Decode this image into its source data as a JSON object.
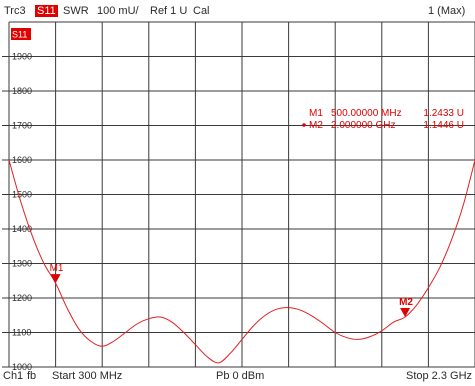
{
  "header": {
    "trace": "Trc3",
    "param": "S11",
    "format": "SWR",
    "scale": "100 mU/",
    "ref": "Ref 1 U",
    "cal": "Cal",
    "max_indicator": "1 (Max)"
  },
  "footer": {
    "channel": "Ch1",
    "fb": "fb",
    "start": "Start  300 MHz",
    "power": "Pb    0 dBm",
    "stop": "Stop  2.3 GHz"
  },
  "colors": {
    "trace": "#e02020",
    "grid": "#3a3a3a",
    "text": "#2a2a2a",
    "accent": "#e00000"
  },
  "chart_data": {
    "type": "line",
    "title": "",
    "xlabel": "",
    "ylabel": "",
    "xlim": [
      300,
      2300
    ],
    "ylim": [
      1000,
      2000
    ],
    "x_unit": "MHz",
    "y_unit": "mU",
    "trace_label": "S11",
    "y_ticks": [
      1000,
      1100,
      1200,
      1300,
      1400,
      1500,
      1600,
      1700,
      1800,
      1900
    ],
    "y_tick_labels": [
      "1000",
      "1100",
      "1200",
      "1300",
      "1400",
      "1500",
      "1600",
      "1700",
      "1800",
      "1900"
    ],
    "grid": true,
    "series": [
      {
        "x": [
          300,
          350,
          400,
          450,
          500,
          550,
          600,
          650,
          700,
          750,
          800,
          850,
          900,
          950,
          1000,
          1050,
          1100,
          1150,
          1200,
          1250,
          1300,
          1350,
          1400,
          1450,
          1500,
          1550,
          1600,
          1650,
          1700,
          1750,
          1800,
          1850,
          1900,
          1950,
          2000,
          2050,
          2100,
          2150,
          2200,
          2250,
          2300
        ],
        "values": [
          1600,
          1480,
          1380,
          1300,
          1243,
          1170,
          1110,
          1075,
          1060,
          1075,
          1100,
          1125,
          1140,
          1145,
          1130,
          1100,
          1065,
          1030,
          1012,
          1040,
          1080,
          1120,
          1150,
          1168,
          1172,
          1165,
          1148,
          1125,
          1100,
          1085,
          1080,
          1088,
          1105,
          1130,
          1145,
          1180,
          1230,
          1290,
          1370,
          1470,
          1600
        ]
      }
    ],
    "markers": [
      {
        "label": "M1",
        "x": 500,
        "y": 1243,
        "freq_text": "500.00000 MHz",
        "value_text": "1.2433 U",
        "active": false
      },
      {
        "label": "M2",
        "x": 2000,
        "y": 1145,
        "freq_text": "2.000000 GHz",
        "value_text": "1.1446 U",
        "active": true
      }
    ]
  }
}
